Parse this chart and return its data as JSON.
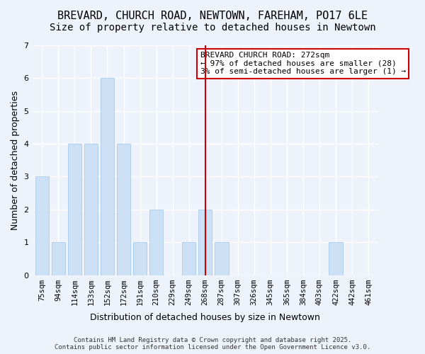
{
  "title": "BREVARD, CHURCH ROAD, NEWTOWN, FAREHAM, PO17 6LE",
  "subtitle": "Size of property relative to detached houses in Newtown",
  "xlabel": "Distribution of detached houses by size in Newtown",
  "ylabel": "Number of detached properties",
  "categories": [
    "75sqm",
    "94sqm",
    "114sqm",
    "133sqm",
    "152sqm",
    "172sqm",
    "191sqm",
    "210sqm",
    "229sqm",
    "249sqm",
    "268sqm",
    "287sqm",
    "307sqm",
    "326sqm",
    "345sqm",
    "365sqm",
    "384sqm",
    "403sqm",
    "422sqm",
    "442sqm",
    "461sqm"
  ],
  "values": [
    3,
    1,
    4,
    4,
    6,
    4,
    1,
    2,
    0,
    1,
    2,
    1,
    0,
    0,
    0,
    0,
    0,
    0,
    1,
    0,
    0
  ],
  "bar_color": "#cce0f5",
  "bar_edgecolor": "#a0c4e8",
  "vline_x_index": 10,
  "vline_label": "BREVARD CHURCH ROAD: 272sqm",
  "annotation_smaller": "← 97% of detached houses are smaller (28)",
  "annotation_larger": "3% of semi-detached houses are larger (1) →",
  "annotation_box_color": "#ffffff",
  "annotation_box_edgecolor": "#cc0000",
  "vline_color": "#cc0000",
  "ylim": [
    0,
    7
  ],
  "yticks": [
    0,
    1,
    2,
    3,
    4,
    5,
    6,
    7
  ],
  "bg_color": "#eef3fb",
  "grid_color": "#ffffff",
  "footnote": "Contains HM Land Registry data © Crown copyright and database right 2025.\nContains public sector information licensed under the Open Government Licence v3.0.",
  "title_fontsize": 11,
  "subtitle_fontsize": 10,
  "xlabel_fontsize": 9,
  "ylabel_fontsize": 9,
  "tick_fontsize": 7.5,
  "annotation_fontsize": 8,
  "footnote_fontsize": 6.5
}
